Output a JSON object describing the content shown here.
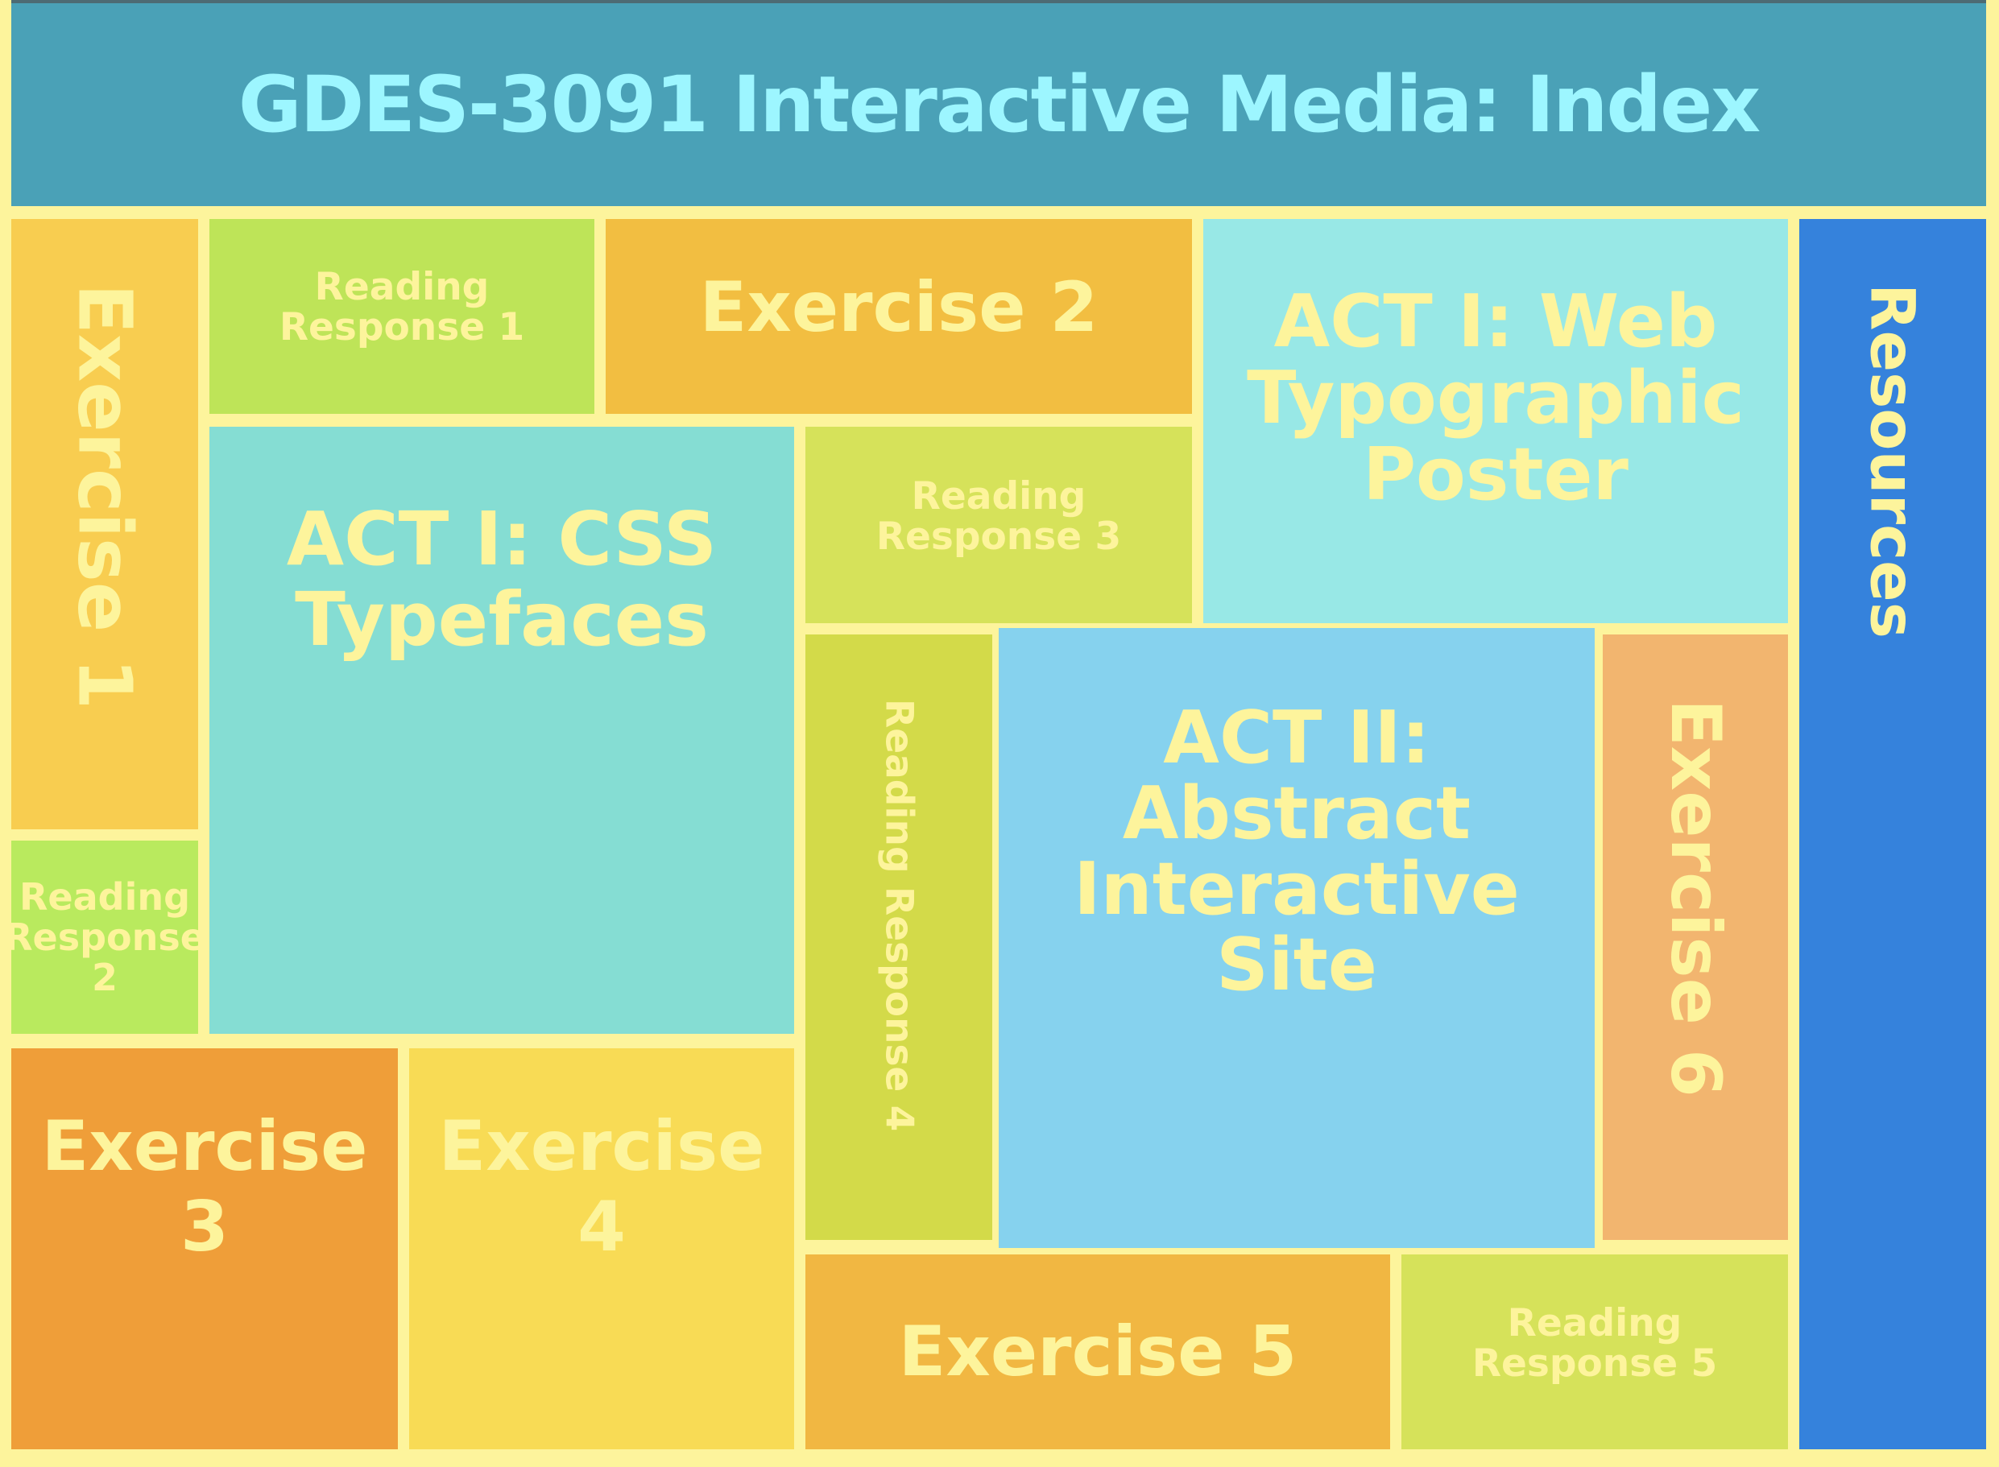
{
  "page": {
    "title": "GDES-3091 Interactive Media: Index"
  },
  "tiles": {
    "exercise_1": {
      "label": "Exercise 1",
      "color": "#F8CD50"
    },
    "reading_response_1": {
      "label": "Reading Response 1",
      "color": "#BEE458"
    },
    "exercise_2": {
      "label": "Exercise 2",
      "color": "#F2BE41"
    },
    "act1_web_poster": {
      "label": "ACT I: Web Typographic Poster",
      "color": "#98E8E6"
    },
    "resources": {
      "label": "Resources",
      "color": "#3582DC"
    },
    "reading_response_2": {
      "label": "Reading Response 2",
      "color": "#B9EA5E"
    },
    "act1_css_typefaces": {
      "label": "ACT I: CSS Typefaces",
      "color": "#85DDD3"
    },
    "reading_response_3": {
      "label": "Reading Response 3",
      "color": "#D6E25A"
    },
    "reading_response_4": {
      "label": "Reading Response 4",
      "color": "#D3DA49"
    },
    "act2_abstract_site": {
      "label": "ACT II: Abstract Interactive Site",
      "color": "#86D2EE"
    },
    "exercise_6": {
      "label": "Exercise 6",
      "color": "#F2B56F"
    },
    "exercise_3": {
      "label": "Exercise 3",
      "color": "#EF9E39"
    },
    "exercise_4": {
      "label": "Exercise 4",
      "color": "#F8DB55"
    },
    "exercise_5": {
      "label": "Exercise 5",
      "color": "#F1B742"
    },
    "reading_response_5": {
      "label": "Reading Response 5",
      "color": "#D6E25A"
    }
  },
  "colors": {
    "background": "#FDF49C",
    "header": "#4AA1B7",
    "header_text": "#9DF6FF",
    "tile_text": "#FDF49C"
  }
}
